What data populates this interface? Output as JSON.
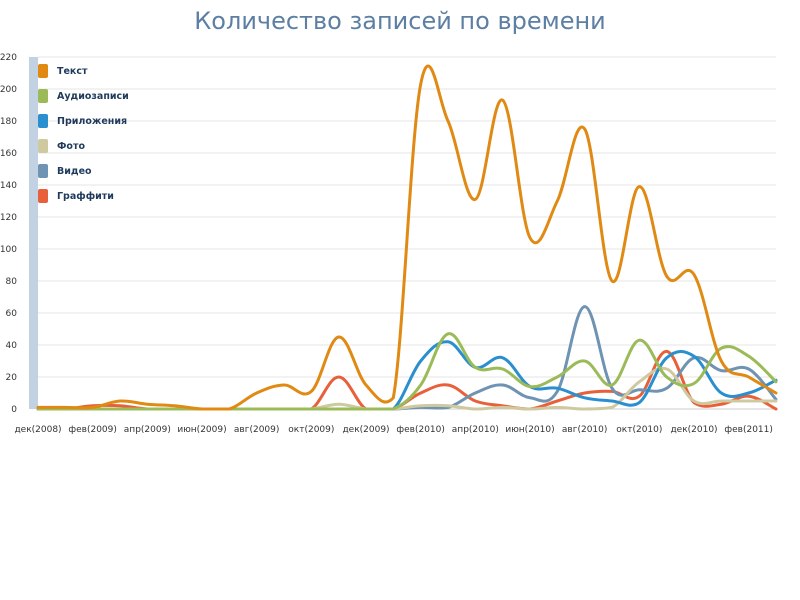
{
  "chart_data": {
    "type": "line",
    "title": "Количество записей по времени",
    "xlabel": "",
    "ylabel": "",
    "ylim": [
      0,
      220
    ],
    "yticks": [
      0,
      20,
      40,
      60,
      80,
      100,
      120,
      140,
      160,
      180,
      200,
      220
    ],
    "grid": true,
    "legend_position": "top-left",
    "x_tick_labels": [
      "дек(2008)",
      "фев(2009)",
      "апр(2009)",
      "июн(2009)",
      "авг(2009)",
      "окт(2009)",
      "дек(2009)",
      "фев(2010)",
      "апр(2010)",
      "июн(2010)",
      "авг(2010)",
      "окт(2010)",
      "дек(2010)",
      "фев(2011)"
    ],
    "x": [
      "2008-12",
      "2009-01",
      "2009-02",
      "2009-03",
      "2009-04",
      "2009-05",
      "2009-06",
      "2009-07",
      "2009-08",
      "2009-09",
      "2009-10",
      "2009-11",
      "2009-12",
      "2010-01",
      "2010-02",
      "2010-03",
      "2010-04",
      "2010-05",
      "2010-06",
      "2010-07",
      "2010-08",
      "2010-09",
      "2010-10",
      "2010-11",
      "2010-12",
      "2011-01",
      "2011-02",
      "2011-03"
    ],
    "series": [
      {
        "name": "Текст",
        "color": "#e08a14",
        "values": [
          1,
          1,
          1,
          5,
          3,
          2,
          0,
          0,
          10,
          15,
          11,
          45,
          15,
          7,
          203,
          180,
          131,
          193,
          107,
          130,
          175,
          80,
          139,
          83,
          84,
          30,
          20,
          10
        ]
      },
      {
        "name": "Аудиозаписи",
        "color": "#9bbb59",
        "values": [
          0,
          0,
          0,
          0,
          0,
          0,
          0,
          0,
          0,
          0,
          0,
          0,
          0,
          0,
          15,
          47,
          26,
          25,
          14,
          20,
          30,
          15,
          43,
          20,
          16,
          38,
          33,
          17
        ]
      },
      {
        "name": "Приложения",
        "color": "#2a8fcf",
        "values": [
          0,
          0,
          0,
          0,
          0,
          0,
          0,
          0,
          0,
          0,
          0,
          0,
          0,
          0,
          30,
          42,
          26,
          32,
          14,
          13,
          7,
          5,
          4,
          32,
          33,
          10,
          10,
          18
        ]
      },
      {
        "name": "Фото",
        "color": "#cfc9a0",
        "values": [
          0,
          0,
          0,
          0,
          0,
          0,
          0,
          0,
          0,
          0,
          0,
          3,
          0,
          0,
          2,
          2,
          0,
          1,
          0,
          1,
          0,
          1,
          17,
          25,
          5,
          5,
          5,
          5
        ]
      },
      {
        "name": "Видео",
        "color": "#6f93b3",
        "values": [
          0,
          0,
          0,
          0,
          0,
          0,
          0,
          0,
          0,
          0,
          0,
          0,
          0,
          0,
          1,
          1,
          10,
          15,
          7,
          11,
          64,
          13,
          12,
          13,
          32,
          24,
          25,
          6
        ]
      },
      {
        "name": "Граффити",
        "color": "#e8603a",
        "values": [
          0,
          0,
          2,
          2,
          0,
          0,
          0,
          0,
          0,
          0,
          0,
          20,
          0,
          0,
          10,
          15,
          5,
          2,
          0,
          5,
          10,
          11,
          8,
          36,
          4,
          3,
          8,
          0
        ]
      }
    ]
  }
}
